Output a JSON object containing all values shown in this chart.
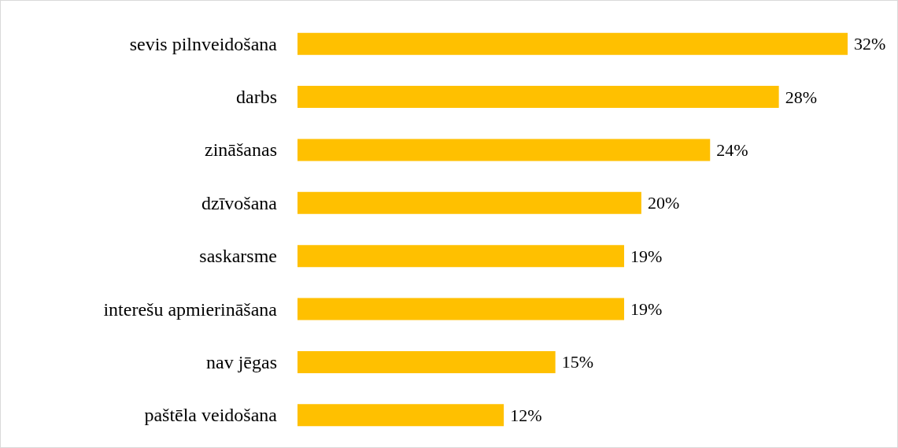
{
  "chart_data": {
    "type": "bar",
    "orientation": "horizontal",
    "tick_labels": "y",
    "categories": [
      "sevis pilnveidošana",
      "darbs",
      "zināšanas",
      "dzīvošana",
      "saskarsme",
      "interešu apmierināšana",
      "nav jēgas",
      "paštēla veidošana"
    ],
    "values": [
      32,
      28,
      24,
      20,
      19,
      19,
      15,
      12
    ],
    "value_labels": [
      "32%",
      "28%",
      "24%",
      "20%",
      "19%",
      "19%",
      "15%",
      "12%"
    ],
    "color": "#ffc000"
  }
}
